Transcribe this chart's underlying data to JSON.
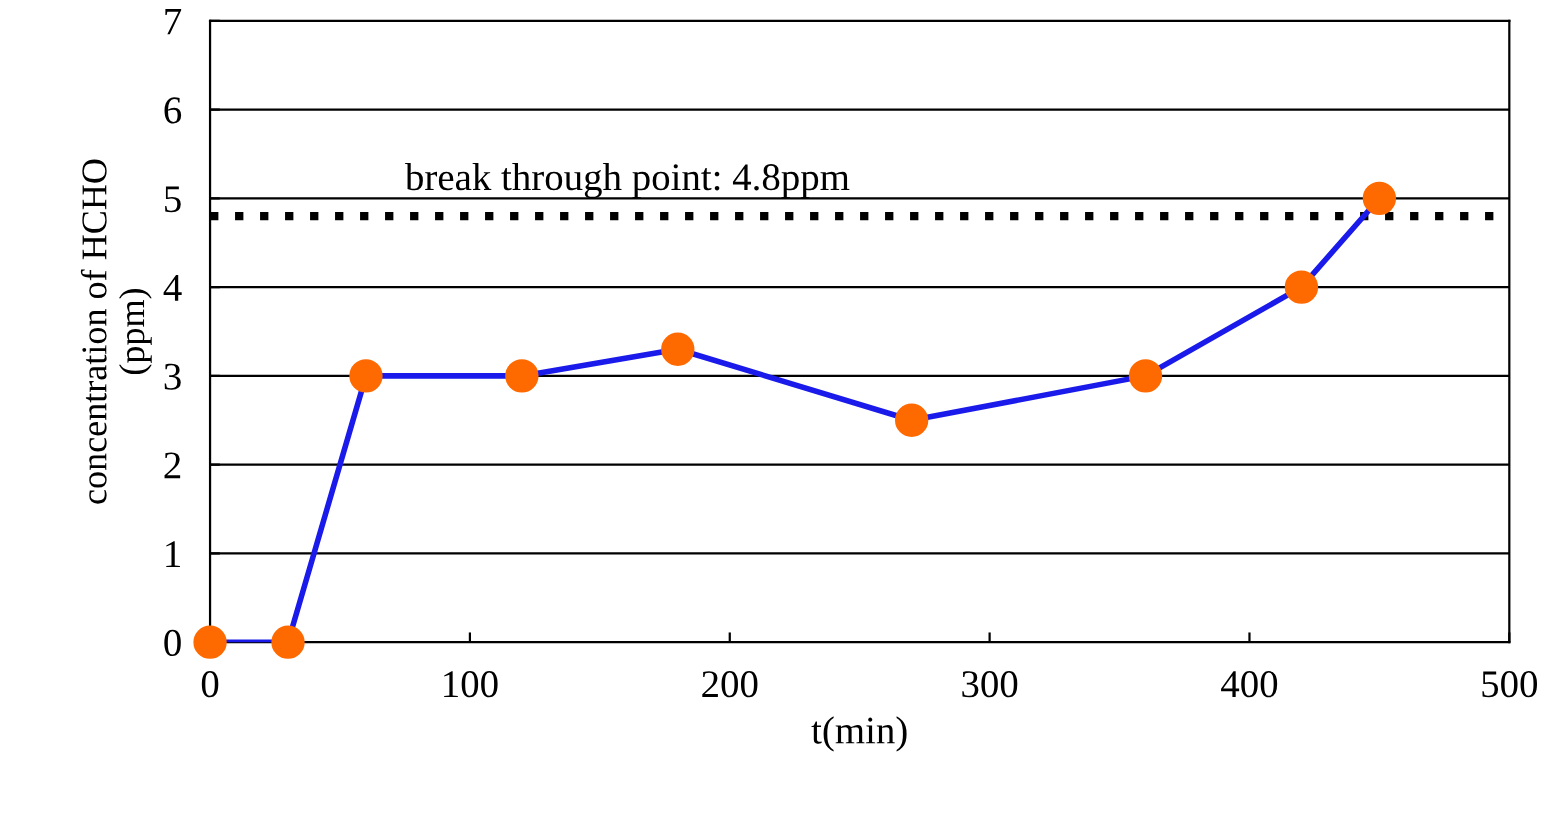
{
  "chart_data": {
    "type": "line",
    "xlabel": "t(min)",
    "ylabel": "concentration of HCHO\n(ppm)",
    "x": [
      0,
      30,
      60,
      120,
      180,
      270,
      360,
      420,
      450
    ],
    "series": [
      {
        "color": "#1a1aeb",
        "colors": [
          "#ff6a00",
          "#ff6a00",
          "#ff6a00",
          "#ff6a00",
          "#ff6a00",
          "#ff6a00",
          "#ff6a00",
          "#ff6a00",
          "#ff6a00"
        ],
        "values": [
          0,
          0,
          3,
          3,
          3.3,
          2.5,
          3,
          4,
          5
        ]
      }
    ],
    "xlim": [
      0,
      500
    ],
    "xticks": [
      0,
      100,
      200,
      300,
      400,
      500
    ],
    "ylim": [
      0,
      7
    ],
    "yticks": [
      0,
      1,
      2,
      3,
      4,
      5,
      6,
      7
    ],
    "grid": "y",
    "marker": "circle",
    "line_style": "solid",
    "ref_lines": [
      {
        "axis": "y",
        "value": 4.8,
        "label": "break through point: 4.8ppm",
        "color": "#000000",
        "line_style": "dotted"
      }
    ]
  }
}
